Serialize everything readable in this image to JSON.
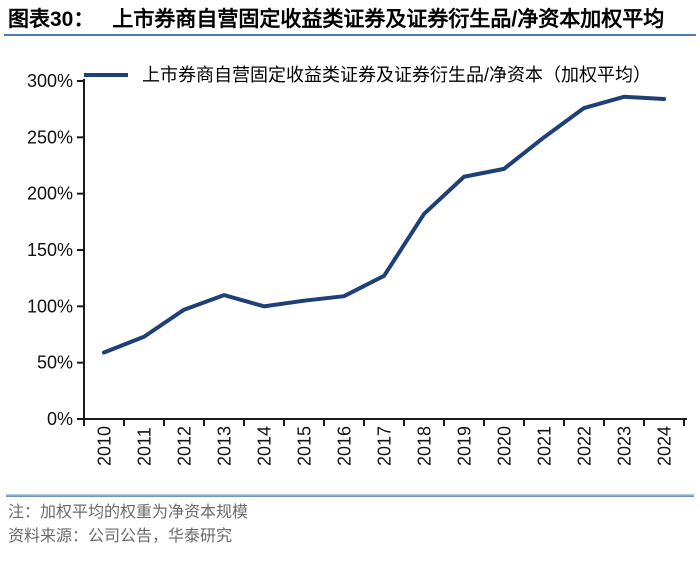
{
  "figure": {
    "title_label": "图表30：",
    "title_text": "上市券商自营固定收益类证券及证券衍生品/净资本加权平均",
    "note": "注：加权平均的权重为净资本规模",
    "source": "资料来源：公司公告，华泰研究"
  },
  "chart_data": {
    "type": "line",
    "categories": [
      "2010",
      "2011",
      "2012",
      "2013",
      "2014",
      "2015",
      "2016",
      "2017",
      "2018",
      "2019",
      "2020",
      "2021",
      "2022",
      "2023",
      "2024"
    ],
    "series": [
      {
        "name": "上市券商自营固定收益类证券及证券衍生品/净资本（加权平均）",
        "values": [
          59,
          73,
          97,
          110,
          100,
          105,
          109,
          127,
          182,
          215,
          222,
          250,
          276,
          286,
          284
        ]
      }
    ],
    "ylabel": "",
    "xlabel": "",
    "ylim": [
      0,
      300
    ],
    "ytick_step": 50,
    "ytick_suffix": "%",
    "grid": false,
    "legend_position": "top-left",
    "x_label_rotation": -90,
    "colors": {
      "line": "#1E4077",
      "title_rule": "#4E7AB5",
      "divider_light": "#C4D6EA",
      "divider_dark": "#5E86B8",
      "note_text": "#6B6B6B",
      "axis": "#1A1A1A",
      "tick_label": "#111111"
    }
  }
}
